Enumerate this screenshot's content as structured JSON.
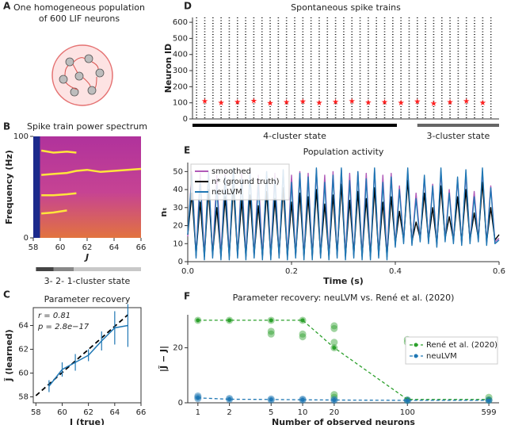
{
  "panels": {
    "labels": [
      "A",
      "B",
      "C",
      "D",
      "E",
      "F"
    ],
    "a_title": [
      "One homogeneous population",
      "of 600 LIF neurons"
    ]
  },
  "chart_data": [
    {
      "type": "heatmap",
      "title": "Spike train power spectrum",
      "xlabel": "J",
      "ylabel": "Frequency (Hz)",
      "xlim": [
        58,
        66
      ],
      "xticks": [
        58,
        60,
        62,
        64,
        66
      ],
      "ylim": [
        0,
        100
      ],
      "yticks": [
        0,
        100
      ],
      "dark_region": [
        58,
        58.5
      ],
      "ridge_color": "#ffe53b",
      "lines": [
        {
          "x": [
            58.6,
            59.5,
            60.5,
            61.2
          ],
          "values": [
            86,
            84,
            85,
            84
          ]
        },
        {
          "x": [
            58.6,
            59.5,
            60.5,
            61.2,
            62,
            63,
            64,
            65,
            66
          ],
          "values": [
            62,
            63,
            64,
            66,
            67,
            65,
            66,
            67,
            68
          ]
        },
        {
          "x": [
            58.6,
            59.5,
            60.5,
            61.2
          ],
          "values": [
            42,
            42,
            43,
            44
          ]
        },
        {
          "x": [
            58.6,
            59.5,
            60.5
          ],
          "values": [
            24,
            25,
            27
          ]
        }
      ],
      "state_bar": {
        "label": "3- 2- 1-cluster state",
        "segments": [
          {
            "start": 58.2,
            "end": 59.5,
            "color": "#444444"
          },
          {
            "start": 59.5,
            "end": 61,
            "color": "#888888"
          },
          {
            "start": 61,
            "end": 66,
            "color": "#c8c8c8"
          }
        ]
      }
    },
    {
      "type": "errorline",
      "title": "Parameter recovery",
      "xlabel": "J (true)",
      "ylabel": "J̃ (learned)",
      "xlim": [
        57.8,
        66
      ],
      "xticks": [
        58,
        60,
        62,
        64,
        66
      ],
      "ylim": [
        57.5,
        65.5
      ],
      "yticks": [
        58,
        60,
        62,
        64
      ],
      "annotations": [
        "r = 0.81",
        "p = 2.8e−17"
      ],
      "color": "#1f77b4",
      "x": [
        59,
        60,
        61,
        62,
        63,
        64,
        65
      ],
      "values": [
        58.9,
        60.3,
        60.9,
        61.5,
        62.7,
        63.8,
        64.0
      ],
      "errors": [
        0.5,
        0.6,
        0.7,
        0.5,
        0.8,
        1.4,
        1.8
      ],
      "fit_line": {
        "x": [
          58,
          65
        ],
        "values": [
          58.1,
          64.9
        ]
      }
    },
    {
      "type": "raster",
      "title": "Spontaneous spike trains",
      "ylabel": "Neuron ID",
      "xlim": [
        0,
        0.6
      ],
      "ylim": [
        0,
        630
      ],
      "yticks": [
        0,
        100,
        200,
        300,
        400,
        500,
        600
      ],
      "burst_times": [
        0.008,
        0.024,
        0.04,
        0.056,
        0.072,
        0.088,
        0.104,
        0.12,
        0.136,
        0.152,
        0.168,
        0.184,
        0.2,
        0.216,
        0.232,
        0.248,
        0.264,
        0.28,
        0.296,
        0.312,
        0.328,
        0.344,
        0.36,
        0.376,
        0.392,
        0.408,
        0.424,
        0.44,
        0.456,
        0.472,
        0.488,
        0.504,
        0.52,
        0.536,
        0.552,
        0.568,
        0.584
      ],
      "stars": {
        "color": "#ff2020",
        "x": [
          0.024,
          0.056,
          0.088,
          0.12,
          0.152,
          0.184,
          0.216,
          0.248,
          0.28,
          0.312,
          0.344,
          0.376,
          0.408,
          0.44,
          0.472,
          0.504,
          0.536,
          0.568
        ],
        "values": [
          110,
          100,
          105,
          112,
          98,
          104,
          108,
          100,
          106,
          110,
          102,
          104,
          100,
          108,
          96,
          104,
          110,
          100
        ]
      },
      "states": [
        {
          "label": "4-cluster state",
          "start": 0,
          "end": 0.4,
          "color": "#000000"
        },
        {
          "label": "3-cluster state",
          "start": 0.44,
          "end": 0.6,
          "color": "#666666"
        }
      ]
    },
    {
      "type": "line",
      "title": "Population activity",
      "xlabel": "Time (s)",
      "ylabel": "nₜ",
      "xlim": [
        0,
        0.6
      ],
      "xticks": [
        {
          "value": 0,
          "label": "0.0"
        },
        0.2,
        0.4,
        0.6
      ],
      "ylim": [
        0,
        55
      ],
      "yticks": [
        0,
        10,
        20,
        30,
        40,
        50
      ],
      "legend": "upper left",
      "x": [
        0,
        0.008,
        0.016,
        0.024,
        0.032,
        0.04,
        0.048,
        0.056,
        0.064,
        0.072,
        0.08,
        0.088,
        0.096,
        0.104,
        0.112,
        0.12,
        0.128,
        0.136,
        0.144,
        0.152,
        0.16,
        0.168,
        0.176,
        0.184,
        0.192,
        0.2,
        0.208,
        0.216,
        0.224,
        0.232,
        0.24,
        0.248,
        0.256,
        0.264,
        0.272,
        0.28,
        0.288,
        0.296,
        0.304,
        0.312,
        0.32,
        0.328,
        0.336,
        0.344,
        0.352,
        0.36,
        0.368,
        0.376,
        0.384,
        0.392,
        0.4,
        0.408,
        0.416,
        0.424,
        0.432,
        0.44,
        0.448,
        0.456,
        0.464,
        0.472,
        0.48,
        0.488,
        0.496,
        0.504,
        0.512,
        0.52,
        0.528,
        0.536,
        0.544,
        0.552,
        0.56,
        0.568,
        0.576,
        0.584,
        0.592,
        0.6
      ],
      "series": [
        {
          "name": "smoothed",
          "color": "#b05ab8",
          "values": [
            14,
            50,
            3,
            49,
            3,
            50,
            3,
            48,
            3,
            50,
            3,
            51,
            3,
            49,
            3,
            50,
            3,
            48,
            3,
            50,
            3,
            49,
            3,
            51,
            3,
            48,
            3,
            50,
            3,
            49,
            3,
            51,
            3,
            48,
            3,
            50,
            3,
            51,
            3,
            49,
            3,
            50,
            3,
            49,
            3,
            51,
            3,
            48,
            3,
            49,
            9,
            42,
            11,
            50,
            10,
            38,
            12,
            47,
            11,
            43,
            9,
            50,
            12,
            40,
            11,
            46,
            10,
            49,
            11,
            39,
            12,
            50,
            10,
            42,
            11,
            13
          ]
        },
        {
          "name": "n* (ground truth)",
          "color": "#000000",
          "values": [
            15,
            38,
            4,
            33,
            3,
            40,
            4,
            30,
            3,
            36,
            3,
            42,
            4,
            34,
            3,
            37,
            4,
            31,
            3,
            39,
            3,
            35,
            4,
            41,
            3,
            33,
            4,
            38,
            3,
            36,
            3,
            40,
            4,
            32,
            3,
            37,
            4,
            43,
            3,
            34,
            4,
            39,
            3,
            35,
            3,
            41,
            4,
            33,
            3,
            36,
            10,
            28,
            12,
            45,
            11,
            22,
            13,
            38,
            12,
            30,
            10,
            42,
            13,
            25,
            12,
            36,
            11,
            40,
            12,
            27,
            13,
            44,
            11,
            30,
            12,
            15
          ]
        },
        {
          "name": "neuLVM",
          "color": "#1f77b4",
          "values": [
            15,
            48,
            2,
            45,
            1,
            50,
            2,
            42,
            1,
            47,
            1,
            52,
            2,
            46,
            1,
            49,
            2,
            43,
            1,
            50,
            1,
            46,
            2,
            51,
            1,
            44,
            2,
            49,
            1,
            47,
            1,
            52,
            2,
            44,
            1,
            48,
            2,
            52,
            1,
            45,
            2,
            50,
            1,
            46,
            1,
            52,
            2,
            44,
            1,
            47,
            8,
            40,
            10,
            52,
            9,
            35,
            11,
            48,
            10,
            42,
            8,
            52,
            11,
            38,
            10,
            47,
            9,
            51,
            10,
            36,
            11,
            52,
            9,
            41,
            10,
            12
          ]
        }
      ]
    },
    {
      "type": "scatter",
      "title": "Parameter recovery: neuLVM vs. René et al. (2020)",
      "xlabel": "Number of observed neurons",
      "ylabel": "|J̃ − J|",
      "xscale": "log",
      "xlim": [
        0.8,
        750
      ],
      "xticks": [
        1,
        2,
        5,
        10,
        20,
        100,
        599
      ],
      "ylim": [
        0,
        32
      ],
      "yticks": [
        0,
        20
      ],
      "legend": "right",
      "series": [
        {
          "name": "René et al. (2020)",
          "color": "#2ca02c",
          "x": [
            1,
            2,
            5,
            10,
            20,
            100,
            599
          ],
          "values": [
            30,
            30,
            30,
            30,
            20,
            1.2,
            1.2
          ]
        },
        {
          "name": "neuLVM",
          "color": "#1f77b4",
          "x": [
            1,
            2,
            5,
            10,
            20,
            100,
            599
          ],
          "values": [
            1.8,
            1.3,
            1.2,
            1.1,
            1.0,
            0.9,
            0.9
          ]
        }
      ],
      "points": [
        {
          "color": "#2ca02c",
          "x": [
            1,
            2,
            5,
            5,
            5,
            10,
            10,
            10,
            20,
            20,
            20,
            20,
            20,
            20,
            100,
            100,
            100,
            599,
            599
          ],
          "values": [
            30,
            30,
            30,
            26,
            25,
            30,
            25,
            24,
            28,
            27,
            22,
            20,
            3,
            2,
            23,
            22,
            1,
            1,
            2
          ]
        },
        {
          "color": "#1f77b4",
          "x": [
            1,
            1,
            1,
            2,
            2,
            5,
            5,
            10,
            10,
            20,
            20,
            100,
            100,
            599,
            599
          ],
          "values": [
            2.5,
            2,
            1.5,
            1.6,
            1.2,
            1.4,
            1,
            1.3,
            1,
            1.2,
            0.9,
            1,
            0.8,
            1,
            0.9
          ]
        }
      ]
    }
  ]
}
